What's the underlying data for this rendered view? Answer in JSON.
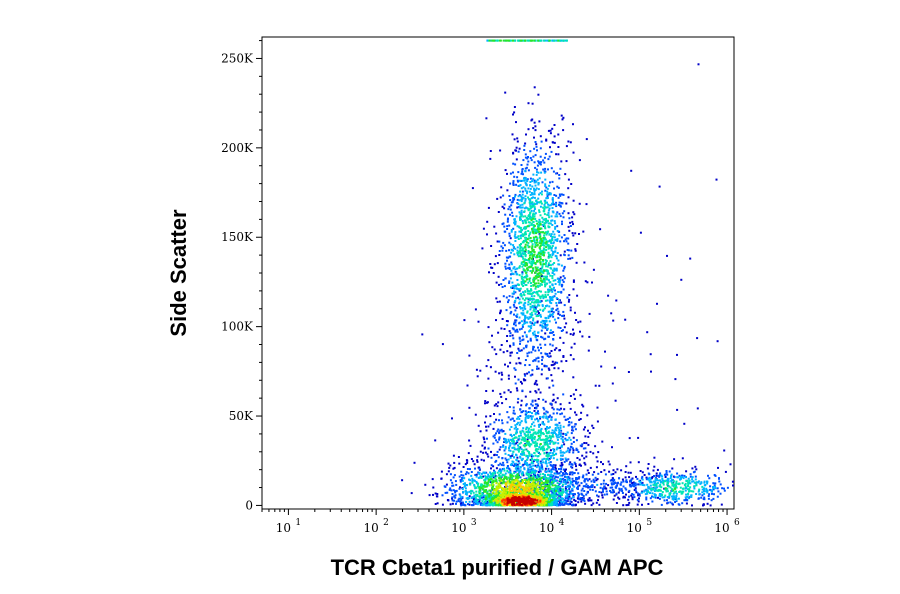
{
  "chart_data": {
    "type": "scatter",
    "subtype": "flow-cytometry-density-dot-plot",
    "xlabel": "TCR Cbeta1 purified / GAM APC",
    "ylabel": "Side Scatter",
    "x_scale": "log",
    "xlim": [
      5,
      1200000
    ],
    "ylim": [
      -2000,
      262000
    ],
    "x_ticks": [
      {
        "value": 10,
        "base": "10",
        "exp": "1"
      },
      {
        "value": 100,
        "base": "10",
        "exp": "2"
      },
      {
        "value": 1000,
        "base": "10",
        "exp": "3"
      },
      {
        "value": 10000,
        "base": "10",
        "exp": "4"
      },
      {
        "value": 100000,
        "base": "10",
        "exp": "5"
      },
      {
        "value": 1000000,
        "base": "10",
        "exp": "6"
      }
    ],
    "y_ticks": [
      {
        "value": 0,
        "label": "0"
      },
      {
        "value": 50000,
        "label": "50K"
      },
      {
        "value": 100000,
        "label": "100K"
      },
      {
        "value": 150000,
        "label": "150K"
      },
      {
        "value": 200000,
        "label": "200K"
      },
      {
        "value": 250000,
        "label": "250K"
      }
    ],
    "color_scale": [
      "#0000c8",
      "#0050ff",
      "#00b4ff",
      "#00e6b4",
      "#28e628",
      "#c8f000",
      "#ffc800",
      "#ff3c00",
      "#c80000"
    ],
    "populations": [
      {
        "x_center": 4500,
        "x_spread_decades": 0.22,
        "y_center": 2500,
        "y_spread": 3000,
        "count": 900,
        "density": 1.0
      },
      {
        "x_center": 4000,
        "x_spread_decades": 0.38,
        "y_center": 9000,
        "y_spread": 7000,
        "count": 1400,
        "density": 0.55
      },
      {
        "x_center": 6500,
        "x_spread_decades": 0.2,
        "y_center": 140000,
        "y_spread": 32000,
        "count": 1700,
        "density": 0.35
      },
      {
        "x_center": 6500,
        "x_spread_decades": 0.28,
        "y_center": 35000,
        "y_spread": 12000,
        "count": 800,
        "density": 0.3
      },
      {
        "x_center": 250000,
        "x_spread_decades": 0.33,
        "y_center": 10000,
        "y_spread": 5000,
        "count": 450,
        "density": 0.3
      },
      {
        "x_center": 20000,
        "x_spread_decades": 0.5,
        "y_center": 12000,
        "y_spread": 5000,
        "count": 350,
        "density": 0.12
      },
      {
        "x_center": 6000,
        "x_spread_decades": 0.45,
        "y_center": 70000,
        "y_spread": 40000,
        "count": 250,
        "density": 0.06
      },
      {
        "x_center": 50000,
        "x_spread_decades": 1.0,
        "y_center": 100000,
        "y_spread": 80000,
        "count": 60,
        "density": 0.02
      }
    ],
    "saturation_band": {
      "x_start": 1800,
      "x_end": 15000,
      "y": 260000,
      "count": 110
    },
    "grid": false,
    "legend": "none"
  }
}
